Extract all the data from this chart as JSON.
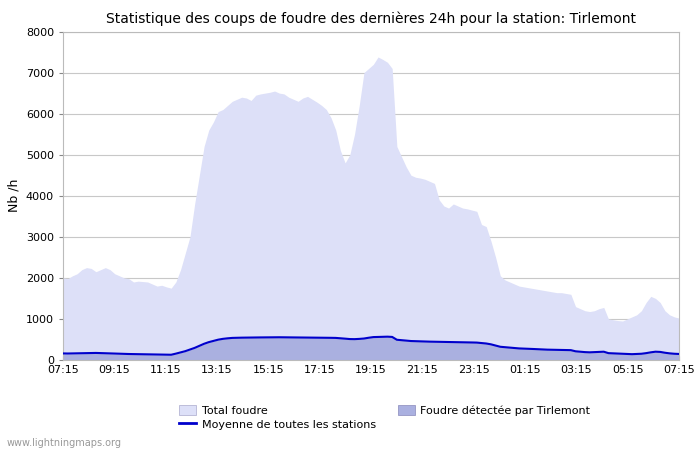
{
  "title": "Statistique des coups de foudre des dernières 24h pour la station: Tirlemont",
  "ylabel": "Nb /h",
  "ylim": [
    0,
    8000
  ],
  "yticks": [
    0,
    1000,
    2000,
    3000,
    4000,
    5000,
    6000,
    7000,
    8000
  ],
  "xtick_labels": [
    "07:15",
    "09:15",
    "11:15",
    "13:15",
    "15:15",
    "17:15",
    "19:15",
    "21:15",
    "23:15",
    "01:15",
    "03:15",
    "05:15",
    "07:15"
  ],
  "bg_color": "#ffffff",
  "plot_bg_color": "#ffffff",
  "grid_color": "#c8c8c8",
  "fill_total_color": "#dde0f8",
  "fill_station_color": "#aab0e0",
  "line_color": "#0000cc",
  "watermark": "www.lightningmaps.org",
  "legend_total": "Total foudre",
  "legend_moyenne": "Moyenne de toutes les stations",
  "legend_station": "Foudre détectée par Tirlemont",
  "total_foudre": [
    2000,
    1980,
    2050,
    2100,
    2200,
    2250,
    2230,
    2150,
    2200,
    2250,
    2200,
    2100,
    2050,
    2000,
    1980,
    1900,
    1920,
    1910,
    1900,
    1850,
    1800,
    1820,
    1780,
    1750,
    1900,
    2200,
    2600,
    3000,
    3800,
    4500,
    5200,
    5600,
    5800,
    6050,
    6100,
    6200,
    6300,
    6350,
    6400,
    6380,
    6320,
    6450,
    6480,
    6500,
    6520,
    6550,
    6500,
    6480,
    6400,
    6350,
    6300,
    6380,
    6420,
    6350,
    6280,
    6200,
    6100,
    5900,
    5600,
    5100,
    4800,
    5000,
    5500,
    6200,
    7000,
    7100,
    7200,
    7380,
    7320,
    7250,
    7100,
    5200,
    4950,
    4700,
    4500,
    4450,
    4430,
    4400,
    4350,
    4300,
    3900,
    3750,
    3700,
    3800,
    3750,
    3700,
    3680,
    3650,
    3620,
    3300,
    3250,
    2900,
    2500,
    2050,
    1950,
    1900,
    1850,
    1800,
    1780,
    1760,
    1740,
    1720,
    1700,
    1680,
    1660,
    1640,
    1640,
    1620,
    1600,
    1300,
    1250,
    1200,
    1180,
    1200,
    1250,
    1280,
    1000,
    980,
    960,
    950,
    1000,
    1050,
    1100,
    1200,
    1400,
    1550,
    1500,
    1400,
    1200,
    1100,
    1050,
    1020
  ],
  "station_foudre": [
    150,
    148,
    150,
    152,
    155,
    158,
    160,
    162,
    158,
    155,
    152,
    148,
    145,
    142,
    140,
    138,
    136,
    134,
    132,
    130,
    128,
    126,
    125,
    123,
    150,
    180,
    210,
    250,
    290,
    340,
    390,
    430,
    460,
    490,
    510,
    525,
    535,
    540,
    542,
    543,
    545,
    546,
    547,
    548,
    549,
    550,
    551,
    550,
    549,
    548,
    547,
    546,
    545,
    546,
    545,
    544,
    543,
    540,
    538,
    530,
    520,
    510,
    505,
    510,
    520,
    540,
    555,
    560,
    562,
    565,
    560,
    490,
    480,
    470,
    460,
    455,
    450,
    448,
    445,
    443,
    440,
    438,
    436,
    435,
    432,
    430,
    428,
    425,
    423,
    410,
    400,
    380,
    350,
    320,
    310,
    300,
    290,
    280,
    275,
    270,
    265,
    260,
    255,
    250,
    248,
    245,
    242,
    240,
    238,
    210,
    200,
    190,
    185,
    190,
    195,
    200,
    165,
    160,
    155,
    150,
    145,
    140,
    145,
    150,
    165,
    185,
    200,
    195,
    175,
    160,
    150,
    145
  ],
  "moyenne": [
    160,
    158,
    160,
    162,
    165,
    168,
    170,
    172,
    168,
    165,
    160,
    155,
    150,
    148,
    146,
    144,
    142,
    140,
    138,
    136,
    134,
    132,
    130,
    128,
    155,
    185,
    215,
    255,
    295,
    345,
    395,
    435,
    465,
    495,
    515,
    528,
    538,
    542,
    544,
    546,
    548,
    549,
    550,
    551,
    552,
    553,
    554,
    552,
    551,
    550,
    549,
    547,
    546,
    547,
    546,
    545,
    544,
    540,
    538,
    530,
    520,
    510,
    508,
    514,
    523,
    542,
    558,
    562,
    564,
    568,
    562,
    493,
    482,
    472,
    462,
    458,
    452,
    450,
    447,
    445,
    442,
    440,
    437,
    436,
    434,
    432,
    430,
    427,
    424,
    412,
    402,
    382,
    352,
    322,
    312,
    302,
    292,
    282,
    278,
    272,
    268,
    262,
    258,
    252,
    250,
    247,
    244,
    242,
    240,
    212,
    202,
    192,
    187,
    192,
    197,
    202,
    167,
    162,
    157,
    152,
    147,
    142,
    147,
    152,
    167,
    187,
    202,
    197,
    177,
    162,
    152,
    147
  ]
}
